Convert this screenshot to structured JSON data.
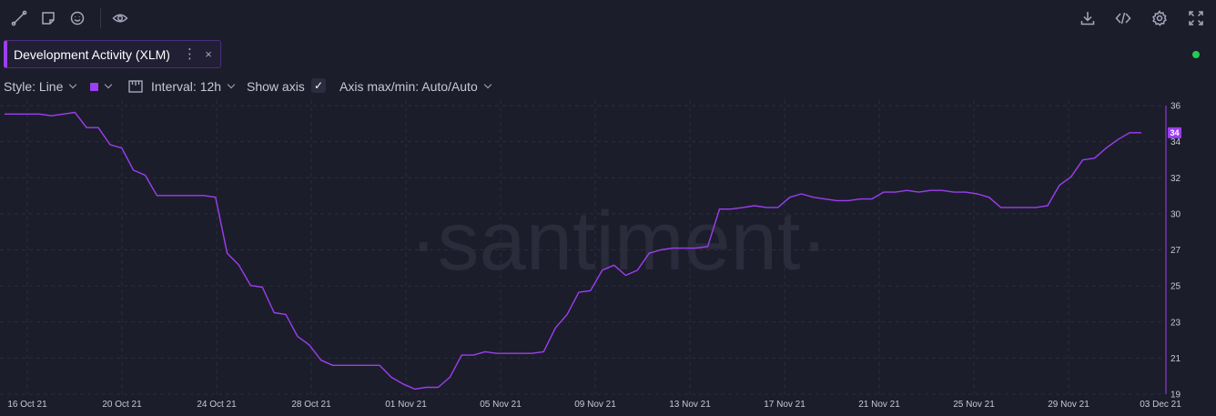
{
  "toolbar": {
    "left_icons": [
      "line-tool-icon",
      "note-icon",
      "emoji-icon",
      "eye-icon"
    ],
    "right_icons": [
      "download-icon",
      "embed-code-icon",
      "gear-icon",
      "fullscreen-icon"
    ]
  },
  "metric": {
    "label": "Development Activity (XLM)",
    "more": "⋮",
    "close": "×"
  },
  "settings": {
    "style": "Style: Line",
    "interval": "Interval: 12h",
    "show_axis": "Show axis",
    "show_axis_checked": "✓",
    "axis_maxmin": "Axis max/min: Auto/Auto"
  },
  "colors": {
    "line": "#9b3ff0",
    "background": "#1c1d2b",
    "grid": "#2c2d3d",
    "live": "#26c953"
  },
  "chart_data": {
    "type": "line",
    "watermark": "·santiment·",
    "x_ticks": [
      "16 Oct 21",
      "20 Oct 21",
      "24 Oct 21",
      "28 Oct 21",
      "01 Nov 21",
      "05 Nov 21",
      "09 Nov 21",
      "13 Nov 21",
      "17 Nov 21",
      "21 Nov 21",
      "25 Nov 21",
      "29 Nov 21",
      "03 Dec 21"
    ],
    "y_ticks": [
      "36",
      "34",
      "32",
      "30",
      "27",
      "25",
      "23",
      "21",
      "19"
    ],
    "ylim": [
      19,
      36
    ],
    "last_value_label": "34",
    "series": [
      {
        "values": [
          35.5,
          35.5,
          35.5,
          35.5,
          35.4,
          35.5,
          35.6,
          34.7,
          34.7,
          33.7,
          33.5,
          32.2,
          31.9,
          30.7,
          30.7,
          30.7,
          30.7,
          30.7,
          30.6,
          27.3,
          26.6,
          25.4,
          25.3,
          23.8,
          23.7,
          22.4,
          21.9,
          21.0,
          20.7,
          20.7,
          20.7,
          20.7,
          20.7,
          20.0,
          19.6,
          19.3,
          19.4,
          19.4,
          20.0,
          21.3,
          21.3,
          21.5,
          21.4,
          21.4,
          21.4,
          21.4,
          21.5,
          22.9,
          23.7,
          25.0,
          25.1,
          26.3,
          26.6,
          26.0,
          26.3,
          27.3,
          27.5,
          27.6,
          27.6,
          27.6,
          27.7,
          29.9,
          29.9,
          30.0,
          30.1,
          30.0,
          30.0,
          30.6,
          30.8,
          30.6,
          30.5,
          30.4,
          30.4,
          30.5,
          30.5,
          30.9,
          30.9,
          31.0,
          30.9,
          31.0,
          31.0,
          30.9,
          30.9,
          30.8,
          30.6,
          30.0,
          30.0,
          30.0,
          30.0,
          30.1,
          31.3,
          31.8,
          32.8,
          32.9,
          33.5,
          34.0,
          34.4,
          34.4
        ]
      }
    ]
  }
}
